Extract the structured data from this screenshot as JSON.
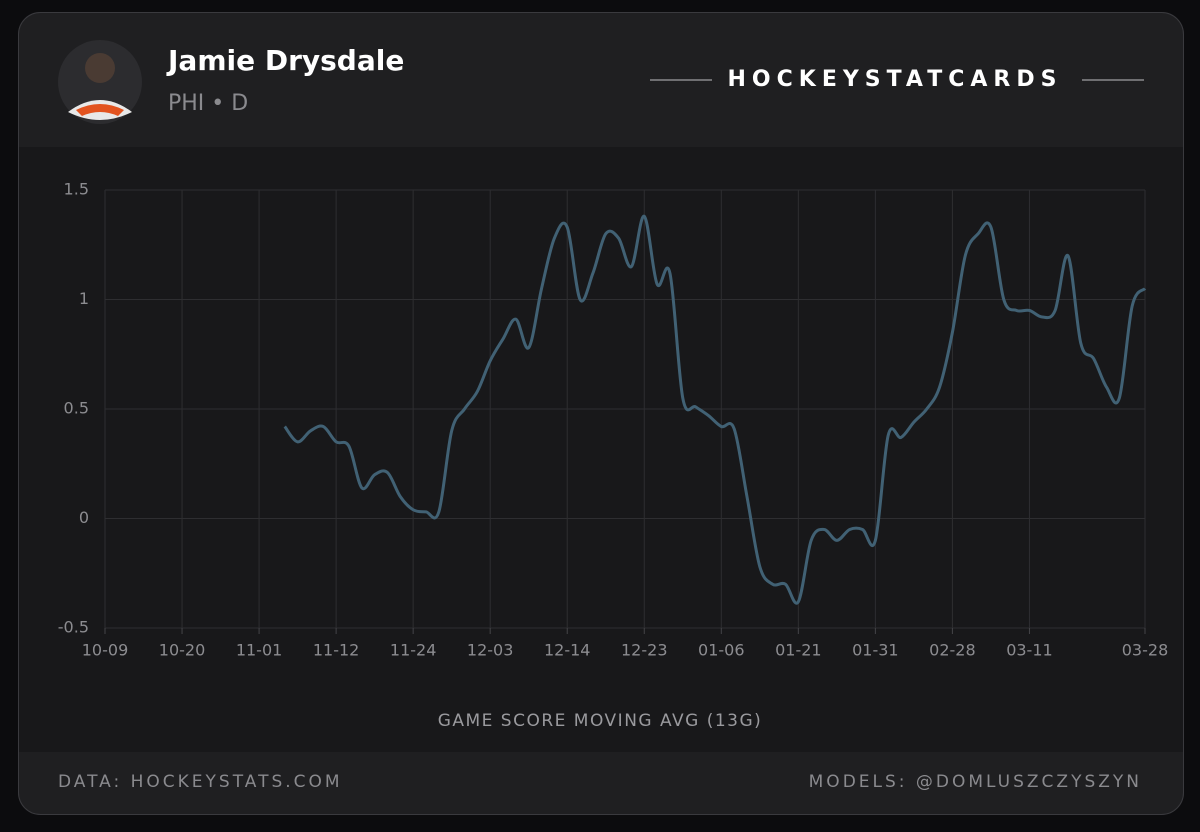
{
  "header": {
    "player_name": "Jamie Drysdale",
    "team_position": "PHI • D",
    "brand": "HOCKEYSTATCARDS"
  },
  "chart_data": {
    "type": "line",
    "x_label": "GAME SCORE MOVING AVG (13G)",
    "x": [
      15,
      16,
      17,
      18,
      19,
      20,
      21,
      22,
      23,
      24,
      25,
      26,
      27,
      28,
      29,
      30,
      31,
      32,
      33,
      34,
      35,
      36,
      37,
      38,
      39,
      40,
      41,
      42,
      43,
      44,
      45,
      46,
      47,
      48,
      49,
      50,
      51,
      52,
      53,
      54,
      55,
      56,
      57,
      58,
      59,
      60,
      61,
      62,
      63,
      64,
      65,
      66,
      67,
      68,
      69,
      70,
      71,
      72,
      73,
      74,
      75,
      76,
      77,
      78,
      79,
      80,
      81,
      82
    ],
    "series": [
      {
        "color": "#416174",
        "values": [
          0.42,
          0.35,
          0.4,
          0.42,
          0.35,
          0.33,
          0.14,
          0.2,
          0.21,
          0.1,
          0.04,
          0.03,
          0.03,
          0.4,
          0.5,
          0.58,
          0.72,
          0.82,
          0.91,
          0.78,
          1.05,
          1.28,
          1.33,
          1.0,
          1.12,
          1.3,
          1.28,
          1.15,
          1.38,
          1.07,
          1.12,
          0.55,
          0.51,
          0.47,
          0.42,
          0.41,
          0.1,
          -0.22,
          -0.3,
          -0.3,
          -0.38,
          -0.1,
          -0.05,
          -0.1,
          -0.05,
          -0.05,
          -0.1,
          0.38,
          0.37,
          0.44,
          0.5,
          0.6,
          0.85,
          1.2,
          1.3,
          1.33,
          1.0,
          0.95,
          0.95,
          0.92,
          0.95,
          1.2,
          0.8,
          0.73,
          0.6,
          0.55,
          0.97,
          1.05
        ]
      }
    ],
    "xlim": [
      1,
      82
    ],
    "xticks": [
      {
        "value": 1,
        "label": "10-09"
      },
      {
        "value": 7,
        "label": "10-20"
      },
      {
        "value": 13,
        "label": "11-01"
      },
      {
        "value": 19,
        "label": "11-12"
      },
      {
        "value": 25,
        "label": "11-24"
      },
      {
        "value": 31,
        "label": "12-03"
      },
      {
        "value": 37,
        "label": "12-14"
      },
      {
        "value": 43,
        "label": "12-23"
      },
      {
        "value": 49,
        "label": "01-06"
      },
      {
        "value": 55,
        "label": "01-21"
      },
      {
        "value": 61,
        "label": "01-31"
      },
      {
        "value": 67,
        "label": "02-28"
      },
      {
        "value": 73,
        "label": "03-11"
      },
      {
        "value": 82,
        "label": "03-28"
      }
    ],
    "ylim": [
      -0.5,
      1.5
    ],
    "yticks": [
      -0.5,
      0,
      0.5,
      1,
      1.5
    ],
    "grid": true
  },
  "footer": {
    "source": "DATA: HOCKEYSTATS.COM",
    "models": "MODELS: @DOMLUSZCZYSZYN"
  }
}
